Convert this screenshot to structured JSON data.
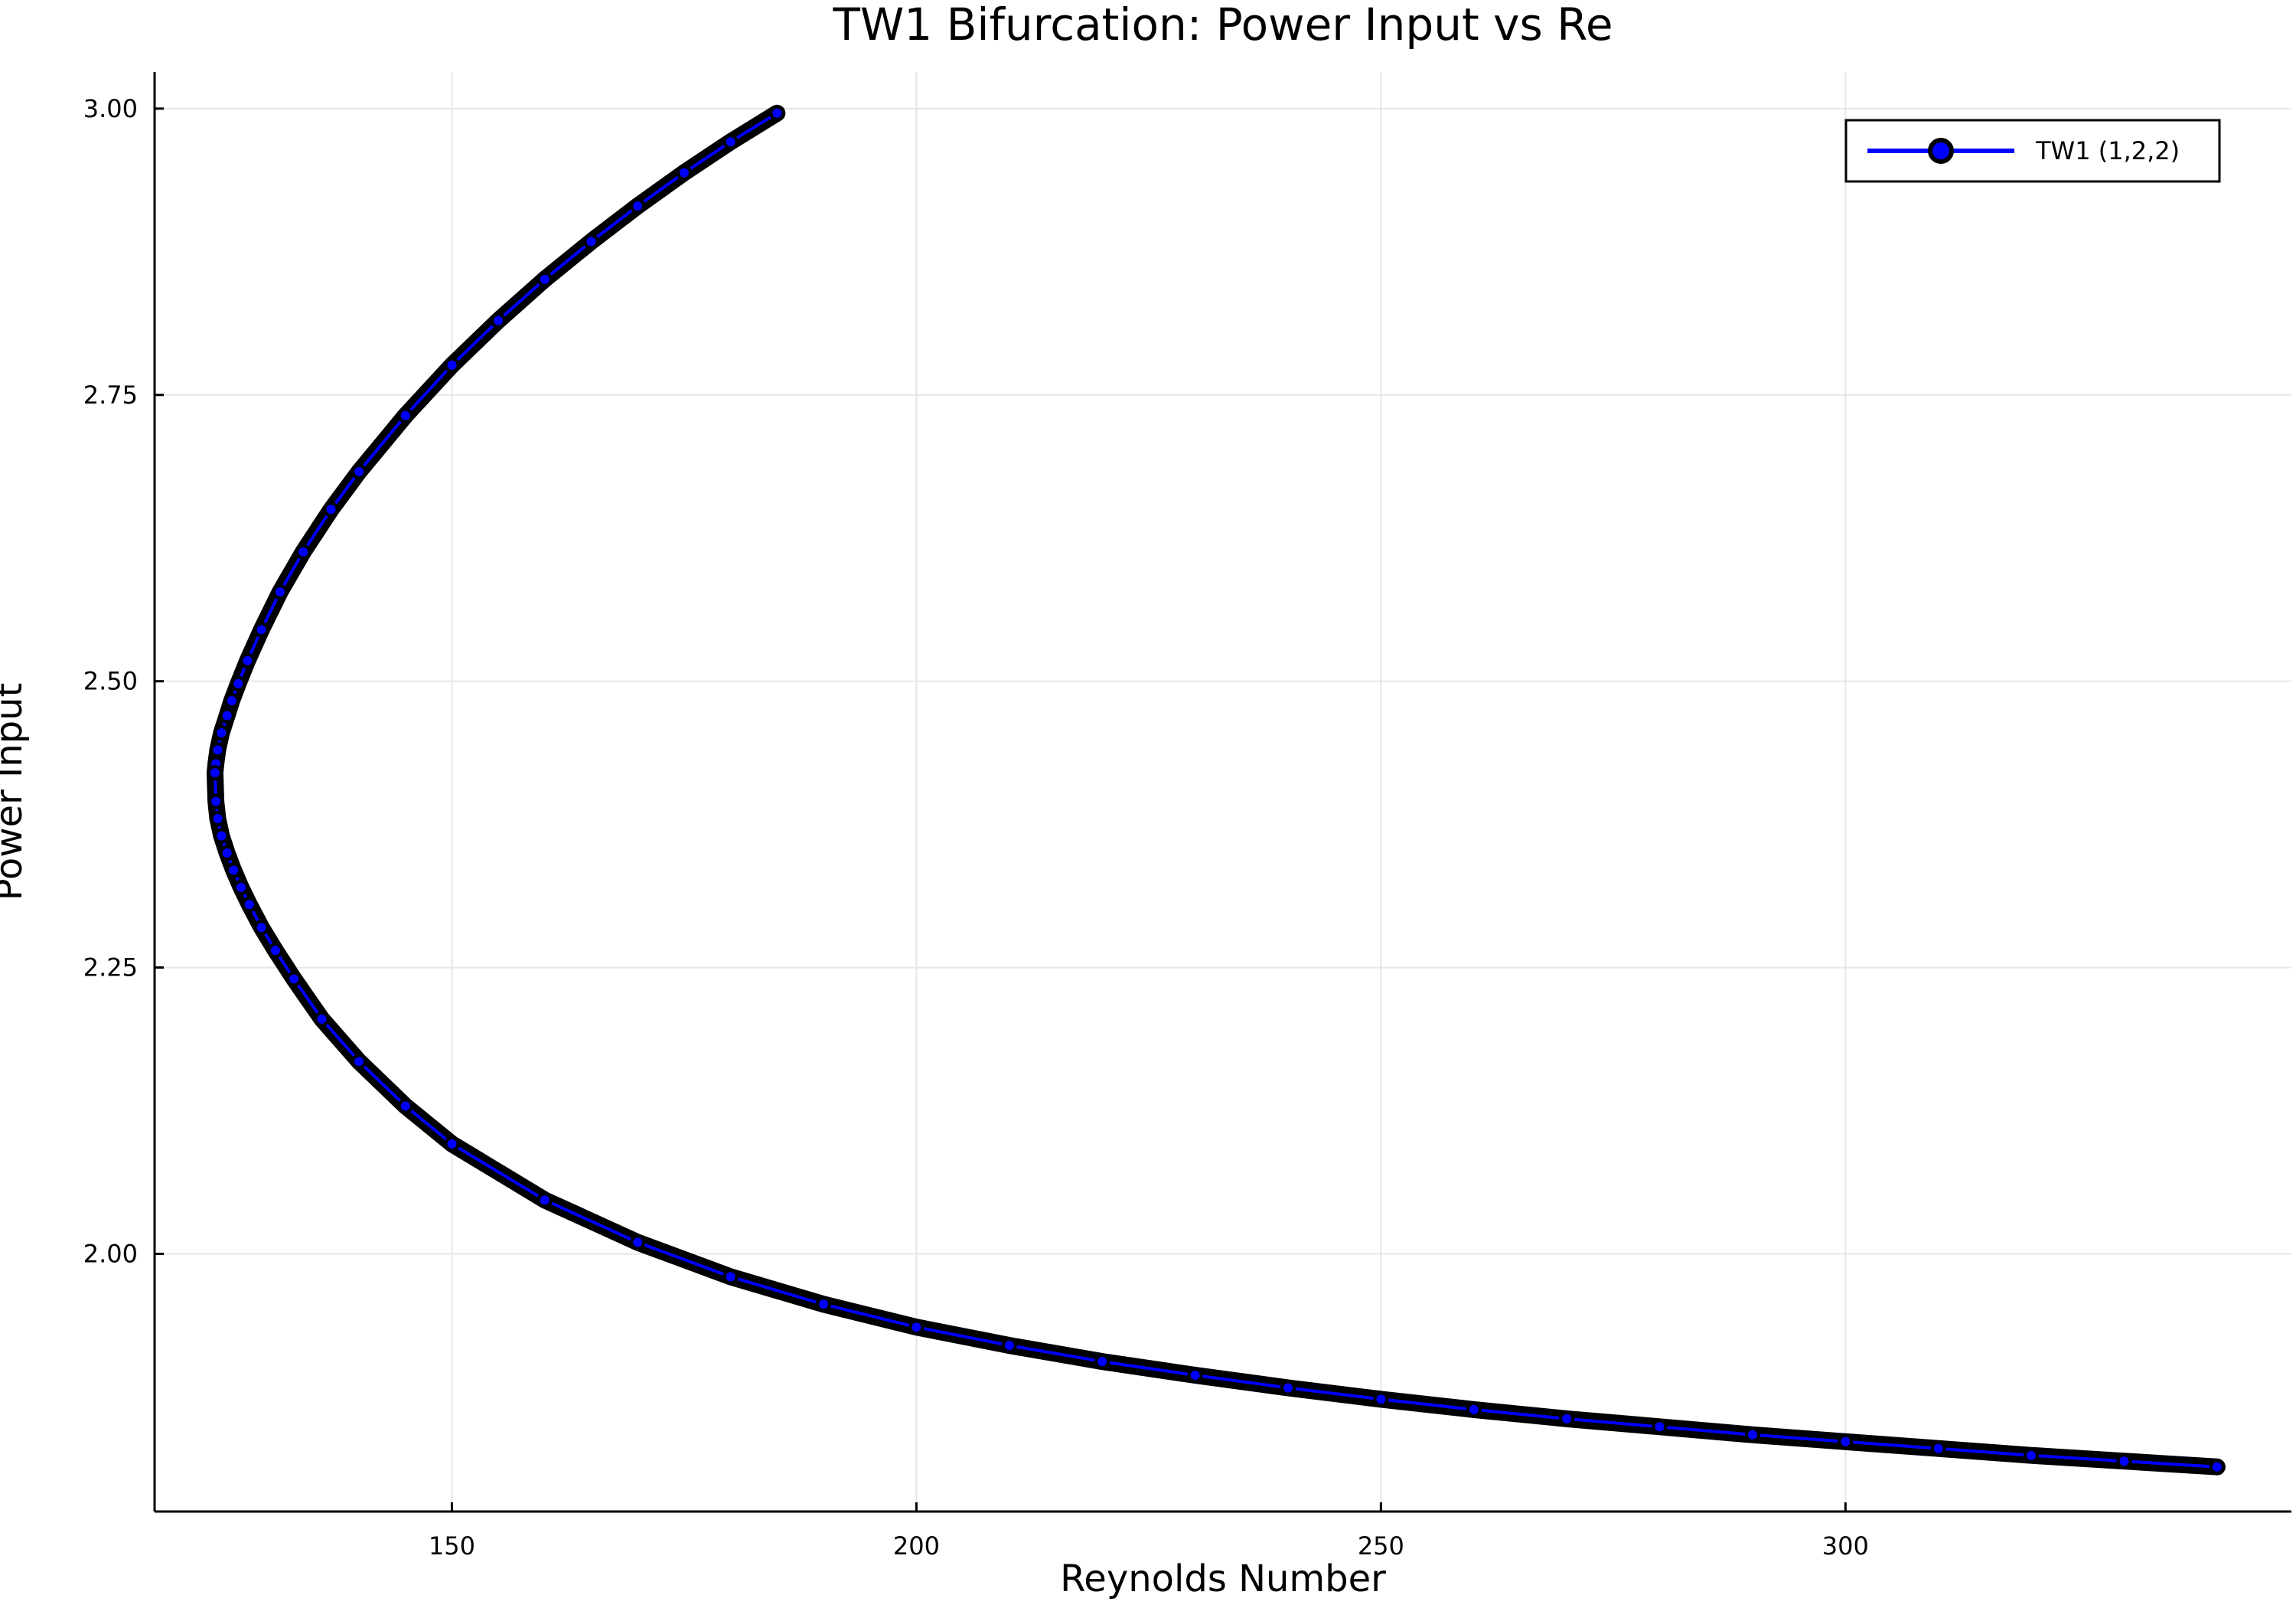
{
  "chart_data": {
    "type": "line",
    "title": "TW1 Bifurcation: Power Input vs Re",
    "xlabel": "Reynolds Number",
    "ylabel": "Power Input",
    "xlim": [
      118,
      348
    ],
    "ylim": [
      1.775,
      3.032
    ],
    "xticks": [
      150,
      200,
      250,
      300
    ],
    "xtick_labels": [
      "150",
      "200",
      "250",
      "300"
    ],
    "yticks": [
      2.0,
      2.25,
      2.5,
      2.75,
      3.0
    ],
    "ytick_labels": [
      "2.00",
      "2.25",
      "2.50",
      "2.75",
      "3.00"
    ],
    "grid": true,
    "legend_position": "top-right",
    "series": [
      {
        "name": "TW1 (1,2,2)",
        "line_color": "#0000ff",
        "marker_color": "#0000ff",
        "marker_edge_color": "#000000",
        "marker": "circle",
        "x": [
          185.0,
          180.0,
          175.0,
          170.0,
          165.0,
          160.0,
          155.0,
          150.0,
          145.0,
          140.0,
          137.0,
          134.0,
          131.5,
          129.5,
          128.0,
          127.0,
          126.3,
          125.8,
          125.2,
          124.8,
          124.6,
          124.5,
          124.6,
          124.8,
          125.2,
          125.8,
          126.5,
          127.3,
          128.2,
          129.5,
          131.0,
          133.0,
          136.0,
          140.0,
          145.0,
          150.0,
          160.0,
          170.0,
          180.0,
          190.0,
          200.0,
          210.0,
          220.0,
          230.0,
          240.0,
          250.0,
          260.0,
          270.0,
          280.0,
          290.0,
          300.0,
          310.0,
          320.0,
          330.0,
          340.0
        ],
        "y": [
          2.996,
          2.971,
          2.944,
          2.915,
          2.884,
          2.851,
          2.815,
          2.776,
          2.732,
          2.683,
          2.65,
          2.613,
          2.578,
          2.545,
          2.518,
          2.498,
          2.483,
          2.47,
          2.455,
          2.44,
          2.428,
          2.42,
          2.395,
          2.38,
          2.365,
          2.35,
          2.335,
          2.32,
          2.305,
          2.285,
          2.265,
          2.24,
          2.205,
          2.168,
          2.129,
          2.096,
          2.047,
          2.01,
          1.98,
          1.956,
          1.936,
          1.92,
          1.906,
          1.894,
          1.883,
          1.873,
          1.864,
          1.856,
          1.849,
          1.842,
          1.836,
          1.83,
          1.824,
          1.819,
          1.814
        ]
      }
    ]
  }
}
